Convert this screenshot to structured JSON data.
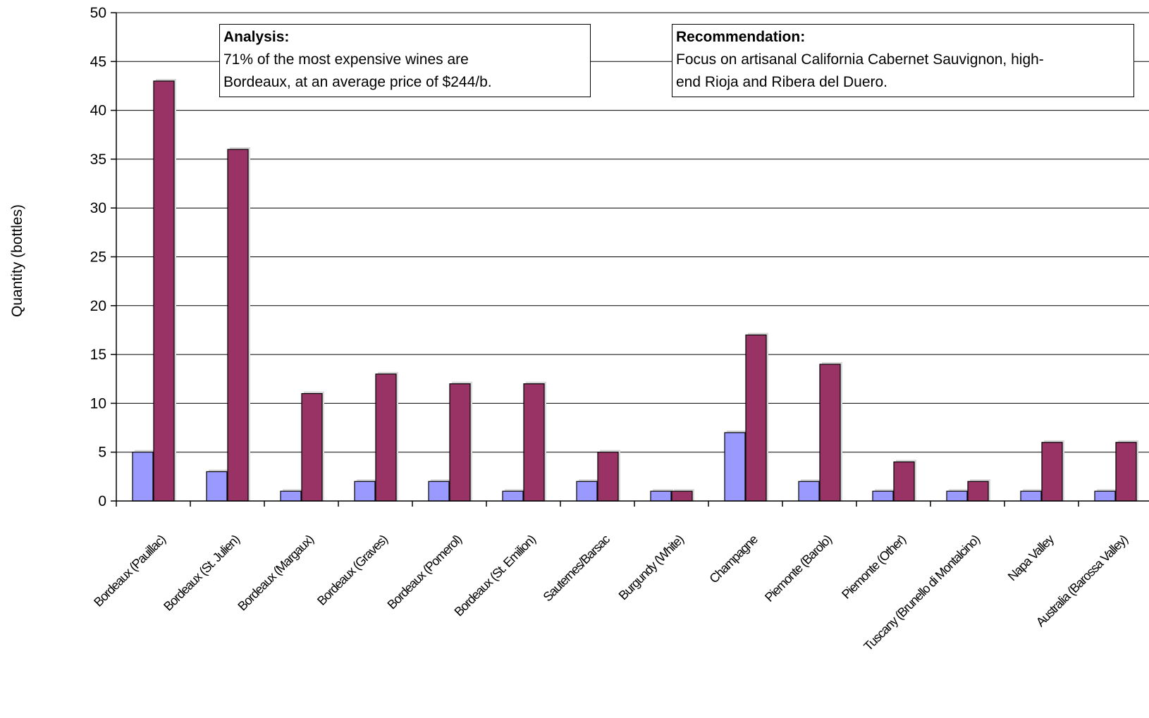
{
  "chart_data": {
    "type": "bar",
    "title": "",
    "xlabel": "",
    "ylabel": "Quantity (bottles)",
    "ylim": [
      0,
      50
    ],
    "yticks": [
      "0",
      "5",
      "10",
      "15",
      "20",
      "25",
      "30",
      "35",
      "40",
      "45",
      "50"
    ],
    "grid": true,
    "categories": [
      "Bordeaux (Pauillac)",
      "Bordeaux (St. Julien)",
      "Bordeaux (Margaux)",
      "Bordeaux (Graves)",
      "Bordeaux (Pomerol)",
      "Bordeaux (St. Emilion)",
      "Sauternes/Barsac",
      "Burgundy (White)",
      "Champagne",
      "Piemonte (Barolo)",
      "Piemonte (Other)",
      "Tuscany (Brunello di Montalcino)",
      "Napa Valley",
      "Australia (Barossa Valley)"
    ],
    "series": [
      {
        "values": [
          5,
          3,
          1,
          2,
          2,
          1,
          2,
          1,
          7,
          2,
          1,
          1,
          1,
          1
        ],
        "color": "#9999ff"
      },
      {
        "values": [
          43,
          36,
          11,
          13,
          12,
          12,
          5,
          1,
          17,
          14,
          4,
          2,
          6,
          6
        ],
        "color": "#993366"
      }
    ],
    "annotations": [
      {
        "title": "Analysis:",
        "lines": [
          "71% of the most expensive wines are",
          "Bordeaux, at an average price of $244/b."
        ]
      },
      {
        "title": "Recommendation:",
        "lines": [
          "Focus on artisanal California Cabernet Sauvignon, high-",
          "end Rioja and Ribera del Duero."
        ]
      }
    ]
  }
}
